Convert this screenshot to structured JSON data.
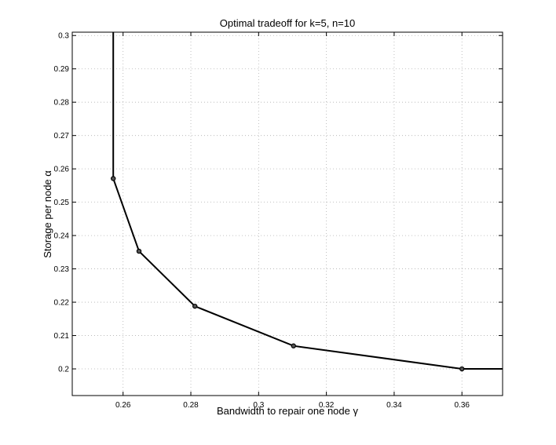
{
  "chart_data": {
    "type": "line",
    "title": "Optimal tradeoff for k=5, n=10",
    "xlabel": "Bandwidth to repair one node γ",
    "ylabel": "Storage per node α",
    "xlim": [
      0.245,
      0.372
    ],
    "ylim": [
      0.192,
      0.301
    ],
    "grid": true,
    "xticks": [
      0.26,
      0.28,
      0.3,
      0.32,
      0.34,
      0.36
    ],
    "xtick_labels": [
      "0.26",
      "0.28",
      "0.3",
      "0.32",
      "0.34",
      "0.36"
    ],
    "yticks": [
      0.2,
      0.21,
      0.22,
      0.23,
      0.24,
      0.25,
      0.26,
      0.27,
      0.28,
      0.29,
      0.3
    ],
    "ytick_labels": [
      "0.2",
      "0.21",
      "0.22",
      "0.23",
      "0.24",
      "0.25",
      "0.26",
      "0.27",
      "0.28",
      "0.29",
      "0.3"
    ],
    "series": [
      {
        "line_x": [
          0.2571,
          0.2571,
          0.2647,
          0.2812,
          0.3103,
          0.36,
          0.372
        ],
        "line_y": [
          0.301,
          0.2571,
          0.2353,
          0.2188,
          0.2069,
          0.2,
          0.2
        ],
        "points_x": [
          0.2571,
          0.2647,
          0.2812,
          0.3103,
          0.36
        ],
        "points_y": [
          0.2571,
          0.2353,
          0.2188,
          0.2069,
          0.2
        ]
      }
    ]
  }
}
